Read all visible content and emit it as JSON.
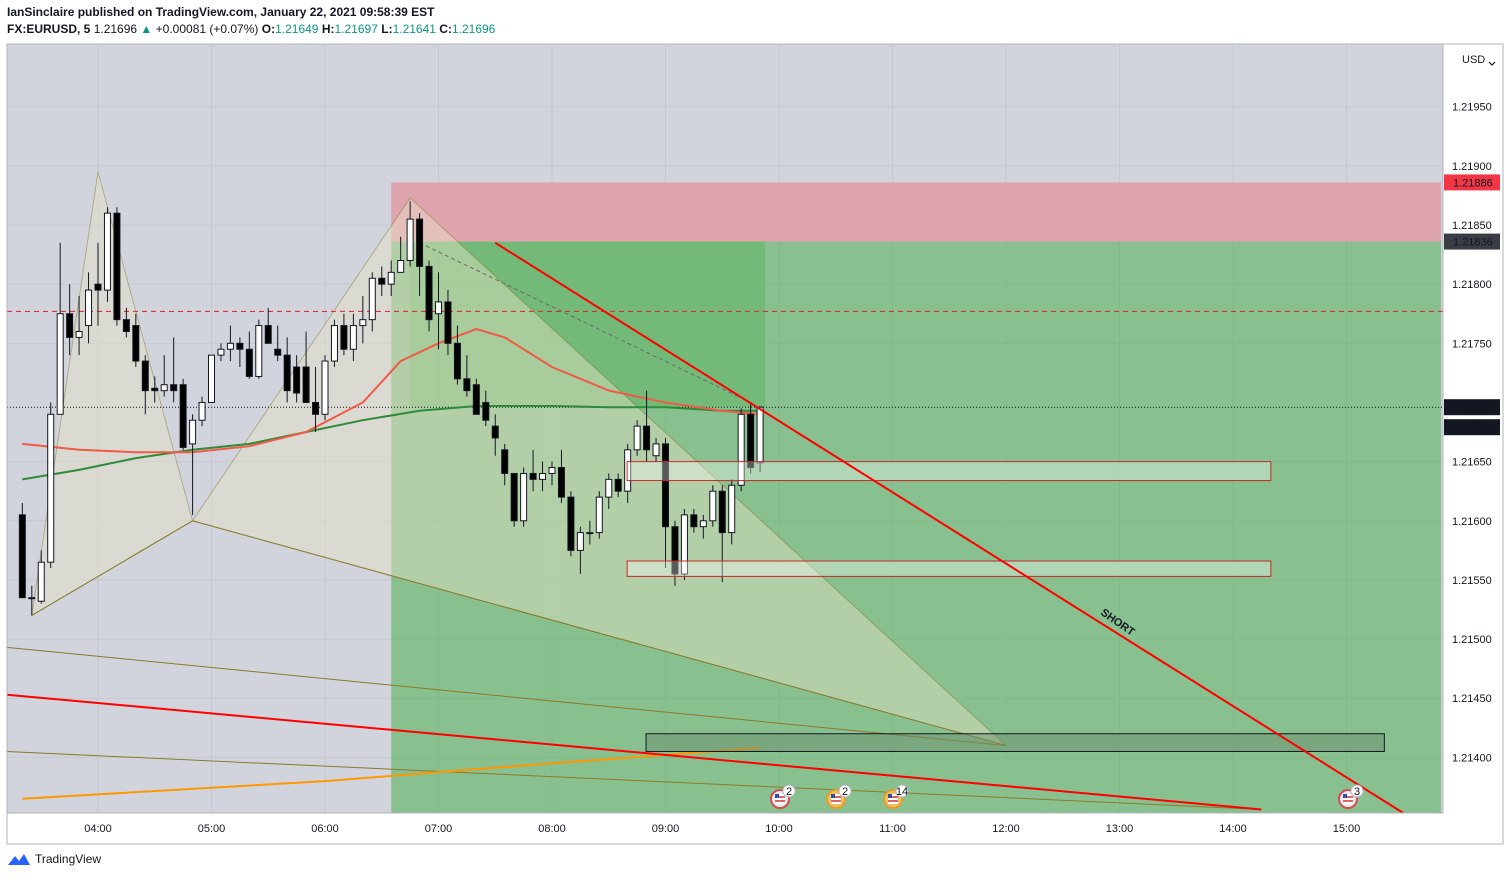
{
  "header": {
    "line1": "IanSinclaire published on TradingView.com, January 22, 2021 09:58:39 EST",
    "symbol": "FX:EURUSD, 5",
    "last": "1.21696",
    "change": "+0.00081 (+0.07%)",
    "o_label": "O:",
    "o_value": "1.21649",
    "h_label": "H:",
    "h_value": "1.21697",
    "l_label": "L:",
    "l_value": "1.21641",
    "c_label": "C:",
    "c_value": "1.21696"
  },
  "footer": {
    "brand": "TradingView"
  },
  "price_axis": {
    "currency": "USD",
    "labels": [
      "1.21950",
      "1.21900",
      "1.21850",
      "1.21800",
      "1.21750",
      "1.21650",
      "1.21600",
      "1.21550",
      "1.21500",
      "1.21450",
      "1.21400"
    ],
    "tags": {
      "stop": "1.21886",
      "entry": "1.21836",
      "current": "1.21696",
      "countdown": "01:23"
    }
  },
  "annotations": {
    "short_label": "SHORT"
  },
  "events": [
    "2",
    "2",
    "14",
    "3"
  ],
  "colors": {
    "stop_zone": "#e0a0a8",
    "target_zone": "#4caf50",
    "trendline": "#ff0000",
    "ema_fast": "#f05a46",
    "ema_slow": "#2e8b3a",
    "ma_long": "#ff9800",
    "pattern": "#8b7a2a",
    "up_candle": "#ffffff",
    "down_candle": "#000000"
  },
  "chart_data": {
    "type": "candlestick",
    "symbol": "FX:EURUSD",
    "timeframe": "5",
    "x_tick_labels": [
      "04:00",
      "05:00",
      "06:00",
      "07:00",
      "08:00",
      "09:00",
      "10:00",
      "11:00",
      "12:00",
      "13:00",
      "14:00",
      "15:00"
    ],
    "ylim": [
      1.21353,
      1.22003
    ],
    "y_ticks": [
      1.2195,
      1.219,
      1.2185,
      1.218,
      1.2175,
      1.2165,
      1.216,
      1.2155,
      1.215,
      1.2145,
      1.214
    ],
    "candles": [
      {
        "t": "03:20",
        "o": 1.21605,
        "h": 1.21615,
        "l": 1.2154,
        "c": 1.21535
      },
      {
        "t": "03:25",
        "o": 1.21535,
        "h": 1.21545,
        "l": 1.2152,
        "c": 1.21535
      },
      {
        "t": "03:30",
        "o": 1.21532,
        "h": 1.21575,
        "l": 1.2153,
        "c": 1.21565
      },
      {
        "t": "03:35",
        "o": 1.21565,
        "h": 1.217,
        "l": 1.2156,
        "c": 1.2169
      },
      {
        "t": "03:40",
        "o": 1.2169,
        "h": 1.21835,
        "l": 1.2169,
        "c": 1.21775
      },
      {
        "t": "03:45",
        "o": 1.21775,
        "h": 1.218,
        "l": 1.2174,
        "c": 1.21755
      },
      {
        "t": "03:50",
        "o": 1.21755,
        "h": 1.2179,
        "l": 1.2174,
        "c": 1.2176
      },
      {
        "t": "03:55",
        "o": 1.21765,
        "h": 1.2181,
        "l": 1.2175,
        "c": 1.21795
      },
      {
        "t": "04:00",
        "o": 1.218,
        "h": 1.21835,
        "l": 1.21765,
        "c": 1.21795
      },
      {
        "t": "04:05",
        "o": 1.21795,
        "h": 1.21865,
        "l": 1.21785,
        "c": 1.2186
      },
      {
        "t": "04:10",
        "o": 1.2186,
        "h": 1.21865,
        "l": 1.21765,
        "c": 1.2177
      },
      {
        "t": "04:15",
        "o": 1.2177,
        "h": 1.2178,
        "l": 1.21755,
        "c": 1.2176
      },
      {
        "t": "04:20",
        "o": 1.21765,
        "h": 1.21775,
        "l": 1.2173,
        "c": 1.21735
      },
      {
        "t": "04:25",
        "o": 1.21735,
        "h": 1.2174,
        "l": 1.2169,
        "c": 1.2171
      },
      {
        "t": "04:30",
        "o": 1.21712,
        "h": 1.21722,
        "l": 1.217,
        "c": 1.2171
      },
      {
        "t": "04:35",
        "o": 1.2171,
        "h": 1.2174,
        "l": 1.21705,
        "c": 1.21715
      },
      {
        "t": "04:40",
        "o": 1.21715,
        "h": 1.21755,
        "l": 1.217,
        "c": 1.2171
      },
      {
        "t": "04:45",
        "o": 1.21715,
        "h": 1.2172,
        "l": 1.2166,
        "c": 1.21662
      },
      {
        "t": "04:50",
        "o": 1.21665,
        "h": 1.2169,
        "l": 1.21605,
        "c": 1.21685
      },
      {
        "t": "04:55",
        "o": 1.21685,
        "h": 1.21705,
        "l": 1.2168,
        "c": 1.217
      },
      {
        "t": "05:00",
        "o": 1.217,
        "h": 1.2174,
        "l": 1.217,
        "c": 1.2174
      },
      {
        "t": "05:05",
        "o": 1.2174,
        "h": 1.2175,
        "l": 1.21735,
        "c": 1.21745
      },
      {
        "t": "05:10",
        "o": 1.21745,
        "h": 1.21765,
        "l": 1.21735,
        "c": 1.2175
      },
      {
        "t": "05:15",
        "o": 1.2175,
        "h": 1.21755,
        "l": 1.2173,
        "c": 1.21745
      },
      {
        "t": "05:20",
        "o": 1.21745,
        "h": 1.2176,
        "l": 1.2172,
        "c": 1.21722
      },
      {
        "t": "05:25",
        "o": 1.21722,
        "h": 1.2177,
        "l": 1.2172,
        "c": 1.21765
      },
      {
        "t": "05:30",
        "o": 1.21765,
        "h": 1.2178,
        "l": 1.2175,
        "c": 1.2175
      },
      {
        "t": "05:35",
        "o": 1.21745,
        "h": 1.21765,
        "l": 1.21735,
        "c": 1.2174
      },
      {
        "t": "05:40",
        "o": 1.2174,
        "h": 1.21755,
        "l": 1.217,
        "c": 1.2171
      },
      {
        "t": "05:45",
        "o": 1.2173,
        "h": 1.2174,
        "l": 1.217,
        "c": 1.21708
      },
      {
        "t": "05:50",
        "o": 1.2173,
        "h": 1.2176,
        "l": 1.217,
        "c": 1.217
      },
      {
        "t": "05:55",
        "o": 1.217,
        "h": 1.2173,
        "l": 1.21675,
        "c": 1.2169
      },
      {
        "t": "06:00",
        "o": 1.2169,
        "h": 1.2174,
        "l": 1.21685,
        "c": 1.21735
      },
      {
        "t": "06:05",
        "o": 1.21735,
        "h": 1.2177,
        "l": 1.2173,
        "c": 1.21765
      },
      {
        "t": "06:10",
        "o": 1.21765,
        "h": 1.21775,
        "l": 1.2174,
        "c": 1.21745
      },
      {
        "t": "06:15",
        "o": 1.21745,
        "h": 1.21775,
        "l": 1.21735,
        "c": 1.21765
      },
      {
        "t": "06:20",
        "o": 1.21765,
        "h": 1.2179,
        "l": 1.2175,
        "c": 1.2177
      },
      {
        "t": "06:25",
        "o": 1.2177,
        "h": 1.2181,
        "l": 1.2176,
        "c": 1.21805
      },
      {
        "t": "06:30",
        "o": 1.21805,
        "h": 1.21815,
        "l": 1.2179,
        "c": 1.218
      },
      {
        "t": "06:35",
        "o": 1.218,
        "h": 1.2182,
        "l": 1.2179,
        "c": 1.2181
      },
      {
        "t": "06:40",
        "o": 1.2181,
        "h": 1.2184,
        "l": 1.2181,
        "c": 1.2182
      },
      {
        "t": "06:45",
        "o": 1.2182,
        "h": 1.2187,
        "l": 1.21815,
        "c": 1.21855
      },
      {
        "t": "06:50",
        "o": 1.21855,
        "h": 1.2186,
        "l": 1.2179,
        "c": 1.21815
      },
      {
        "t": "06:55",
        "o": 1.21815,
        "h": 1.2182,
        "l": 1.2176,
        "c": 1.2177
      },
      {
        "t": "07:00",
        "o": 1.21775,
        "h": 1.2181,
        "l": 1.21745,
        "c": 1.21785
      },
      {
        "t": "07:05",
        "o": 1.21785,
        "h": 1.21795,
        "l": 1.2174,
        "c": 1.2175
      },
      {
        "t": "07:10",
        "o": 1.2175,
        "h": 1.21765,
        "l": 1.21715,
        "c": 1.2172
      },
      {
        "t": "07:15",
        "o": 1.2172,
        "h": 1.2174,
        "l": 1.21705,
        "c": 1.2171
      },
      {
        "t": "07:20",
        "o": 1.21715,
        "h": 1.2172,
        "l": 1.2169,
        "c": 1.2169
      },
      {
        "t": "07:25",
        "o": 1.217,
        "h": 1.2171,
        "l": 1.2168,
        "c": 1.21685
      },
      {
        "t": "07:30",
        "o": 1.2168,
        "h": 1.2169,
        "l": 1.21655,
        "c": 1.2167
      },
      {
        "t": "07:35",
        "o": 1.2166,
        "h": 1.21665,
        "l": 1.2163,
        "c": 1.2164
      },
      {
        "t": "07:40",
        "o": 1.2164,
        "h": 1.2164,
        "l": 1.21595,
        "c": 1.216
      },
      {
        "t": "07:45",
        "o": 1.216,
        "h": 1.21645,
        "l": 1.21595,
        "c": 1.2164
      },
      {
        "t": "07:50",
        "o": 1.2164,
        "h": 1.2166,
        "l": 1.21625,
        "c": 1.21635
      },
      {
        "t": "07:55",
        "o": 1.21635,
        "h": 1.2165,
        "l": 1.21625,
        "c": 1.2164
      },
      {
        "t": "08:00",
        "o": 1.2164,
        "h": 1.2165,
        "l": 1.2163,
        "c": 1.21645
      },
      {
        "t": "08:05",
        "o": 1.21645,
        "h": 1.2166,
        "l": 1.21615,
        "c": 1.2162
      },
      {
        "t": "08:10",
        "o": 1.2162,
        "h": 1.21625,
        "l": 1.2157,
        "c": 1.21575
      },
      {
        "t": "08:15",
        "o": 1.21575,
        "h": 1.21595,
        "l": 1.21555,
        "c": 1.2159
      },
      {
        "t": "08:20",
        "o": 1.2159,
        "h": 1.216,
        "l": 1.2158,
        "c": 1.2159
      },
      {
        "t": "08:25",
        "o": 1.2159,
        "h": 1.21625,
        "l": 1.21585,
        "c": 1.2162
      },
      {
        "t": "08:30",
        "o": 1.2162,
        "h": 1.2164,
        "l": 1.2161,
        "c": 1.21635
      },
      {
        "t": "08:35",
        "o": 1.21635,
        "h": 1.2164,
        "l": 1.2162,
        "c": 1.21625
      },
      {
        "t": "08:40",
        "o": 1.21625,
        "h": 1.21665,
        "l": 1.21615,
        "c": 1.2166
      },
      {
        "t": "08:45",
        "o": 1.2166,
        "h": 1.21685,
        "l": 1.21655,
        "c": 1.2168
      },
      {
        "t": "08:50",
        "o": 1.2168,
        "h": 1.2171,
        "l": 1.2165,
        "c": 1.2166
      },
      {
        "t": "08:55",
        "o": 1.21655,
        "h": 1.2167,
        "l": 1.2165,
        "c": 1.21665
      },
      {
        "t": "09:00",
        "o": 1.21665,
        "h": 1.2167,
        "l": 1.2156,
        "c": 1.21595
      },
      {
        "t": "09:05",
        "o": 1.21595,
        "h": 1.216,
        "l": 1.21545,
        "c": 1.21555
      },
      {
        "t": "09:10",
        "o": 1.21555,
        "h": 1.2161,
        "l": 1.2155,
        "c": 1.21605
      },
      {
        "t": "09:15",
        "o": 1.21605,
        "h": 1.2161,
        "l": 1.2159,
        "c": 1.21595
      },
      {
        "t": "09:20",
        "o": 1.21595,
        "h": 1.21605,
        "l": 1.21585,
        "c": 1.216
      },
      {
        "t": "09:25",
        "o": 1.216,
        "h": 1.2163,
        "l": 1.21595,
        "c": 1.21625
      },
      {
        "t": "09:30",
        "o": 1.21625,
        "h": 1.2163,
        "l": 1.21548,
        "c": 1.2159
      },
      {
        "t": "09:35",
        "o": 1.2159,
        "h": 1.21635,
        "l": 1.2158,
        "c": 1.2163
      },
      {
        "t": "09:40",
        "o": 1.2163,
        "h": 1.21695,
        "l": 1.21625,
        "c": 1.2169
      },
      {
        "t": "09:45",
        "o": 1.2169,
        "h": 1.217,
        "l": 1.2164,
        "c": 1.21645
      },
      {
        "t": "09:50",
        "o": 1.21649,
        "h": 1.21697,
        "l": 1.21641,
        "c": 1.21696
      }
    ],
    "indicators": {
      "ema_fast": [
        [
          "03:20",
          1.21665
        ],
        [
          "03:50",
          1.2166
        ],
        [
          "04:20",
          1.21658
        ],
        [
          "04:50",
          1.21658
        ],
        [
          "05:20",
          1.21663
        ],
        [
          "05:50",
          1.21675
        ],
        [
          "06:20",
          1.217
        ],
        [
          "06:40",
          1.21735
        ],
        [
          "07:00",
          1.2175
        ],
        [
          "07:20",
          1.21762
        ],
        [
          "07:35",
          1.21755
        ],
        [
          "08:00",
          1.2173
        ],
        [
          "08:30",
          1.2171
        ],
        [
          "09:00",
          1.217
        ],
        [
          "09:30",
          1.21693
        ],
        [
          "09:50",
          1.2169
        ]
      ],
      "ema_slow": [
        [
          "03:20",
          1.21635
        ],
        [
          "03:50",
          1.21643
        ],
        [
          "04:20",
          1.21653
        ],
        [
          "04:50",
          1.2166
        ],
        [
          "05:20",
          1.21665
        ],
        [
          "05:50",
          1.21675
        ],
        [
          "06:20",
          1.21685
        ],
        [
          "06:50",
          1.21693
        ],
        [
          "07:20",
          1.21697
        ],
        [
          "08:00",
          1.21697
        ],
        [
          "08:30",
          1.21696
        ],
        [
          "09:00",
          1.21696
        ],
        [
          "09:30",
          1.21693
        ],
        [
          "09:50",
          1.21693
        ]
      ],
      "ma_long": [
        [
          "03:20",
          1.21365
        ],
        [
          "06:00",
          1.2138
        ],
        [
          "08:00",
          1.21395
        ],
        [
          "09:50",
          1.21408
        ]
      ]
    },
    "position": {
      "side": "short",
      "stop": 1.21886,
      "entry": 1.21836,
      "start": "06:35",
      "end": "15:50"
    },
    "levels": [
      {
        "price": 1.21777,
        "style": "dashed"
      }
    ],
    "zones": [
      {
        "from": "08:45",
        "to": "14:20",
        "top": 1.2165,
        "bottom": 1.21634
      },
      {
        "from": "08:45",
        "to": "14:20",
        "top": 1.21566,
        "bottom": 1.21553
      },
      {
        "from": "08:55",
        "to": "15:20",
        "top": 1.2142,
        "bottom": 1.21405
      }
    ],
    "trendlines": [
      {
        "points": [
          [
            "07:30",
            1.21835
          ],
          [
            "15:30",
            1.21353
          ]
        ]
      },
      {
        "points": [
          [
            "03:20",
            1.21453
          ],
          [
            "14:15",
            1.21356
          ]
        ]
      }
    ],
    "harmonic": [
      [
        "03:25",
        1.2152
      ],
      [
        "04:00",
        1.21895
      ],
      [
        "04:50",
        1.216
      ],
      [
        "06:45",
        1.21873
      ],
      [
        "12:00",
        1.2141
      ]
    ]
  }
}
